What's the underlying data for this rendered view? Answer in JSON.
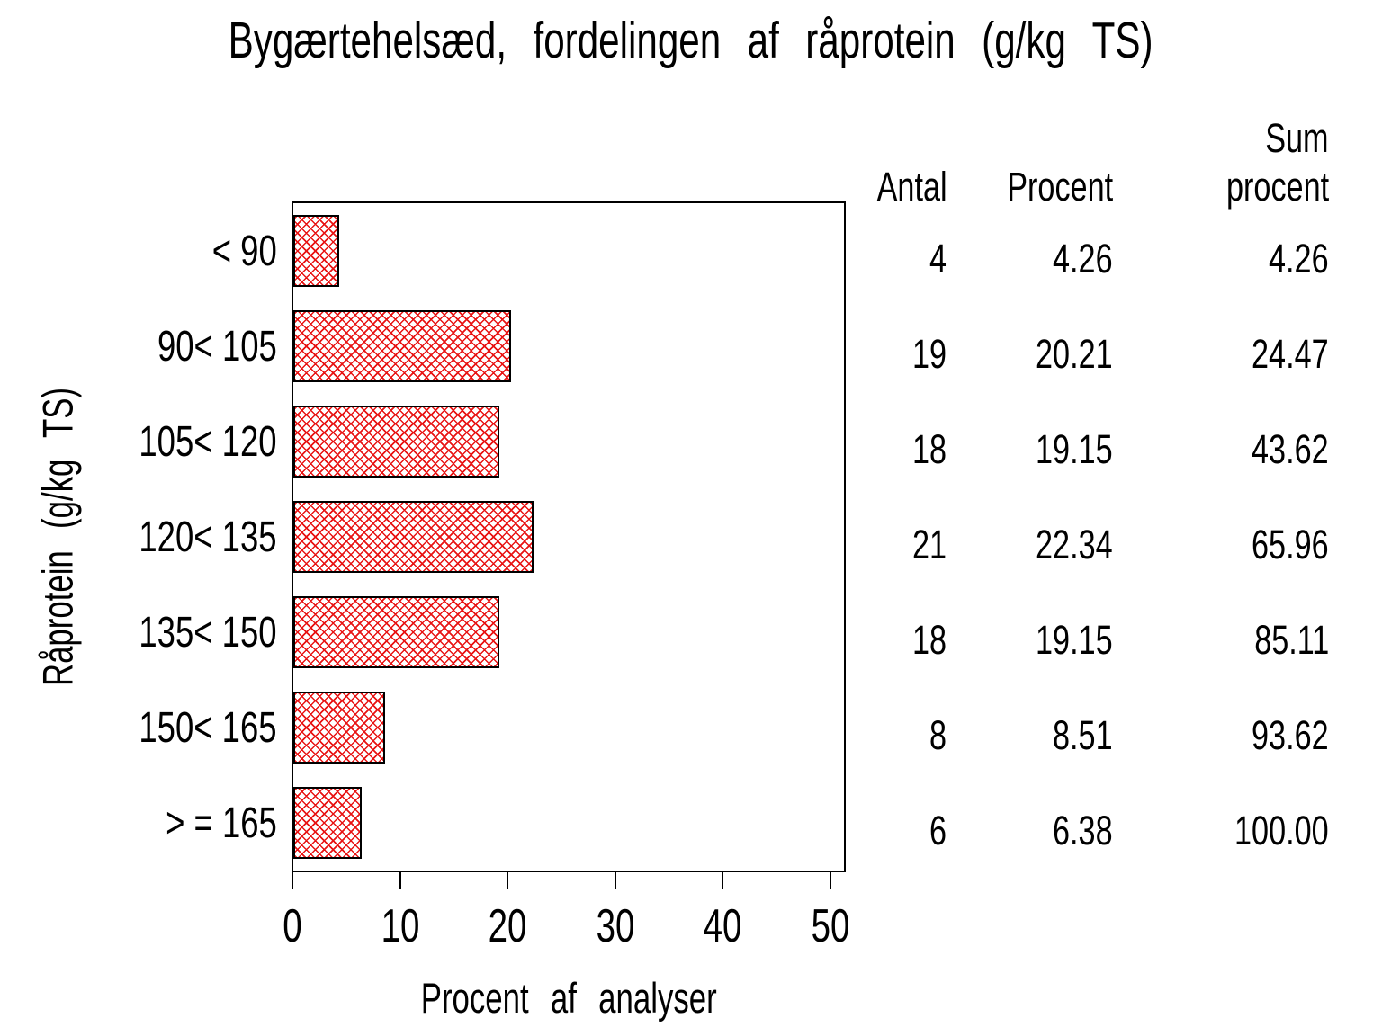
{
  "chart_data": {
    "type": "bar",
    "orientation": "horizontal",
    "title": "Bygærtehelsæd, fordelingen af råprotein (g/kg TS)",
    "xlabel": "Procent af analyser",
    "ylabel": "Råprotein (g/kg TS)",
    "categories": [
      "< 90",
      "90< 105",
      "105< 120",
      "120< 135",
      "135< 150",
      "150< 165",
      "> = 165"
    ],
    "values": [
      4.26,
      20.21,
      19.15,
      22.34,
      19.15,
      8.51,
      6.38
    ],
    "xlim": [
      0,
      50
    ],
    "xticks": [
      "0",
      "10",
      "20",
      "30",
      "40",
      "50"
    ],
    "grid": "off",
    "bar_pattern": "red crosshatch",
    "bar_pattern_color": "#e81414",
    "bar_border_color": "#000000"
  },
  "table": {
    "headers": {
      "antal": "Antal",
      "procent": "Procent",
      "sum_line1": "Sum",
      "sum_line2": "procent"
    },
    "rows": [
      {
        "antal": "4",
        "procent": "4.26",
        "sum": "4.26"
      },
      {
        "antal": "19",
        "procent": "20.21",
        "sum": "24.47"
      },
      {
        "antal": "18",
        "procent": "19.15",
        "sum": "43.62"
      },
      {
        "antal": "21",
        "procent": "22.34",
        "sum": "65.96"
      },
      {
        "antal": "18",
        "procent": "19.15",
        "sum": "85.11"
      },
      {
        "antal": "8",
        "procent": "8.51",
        "sum": "93.62"
      },
      {
        "antal": "6",
        "procent": "6.38",
        "sum": "100.00"
      }
    ]
  }
}
